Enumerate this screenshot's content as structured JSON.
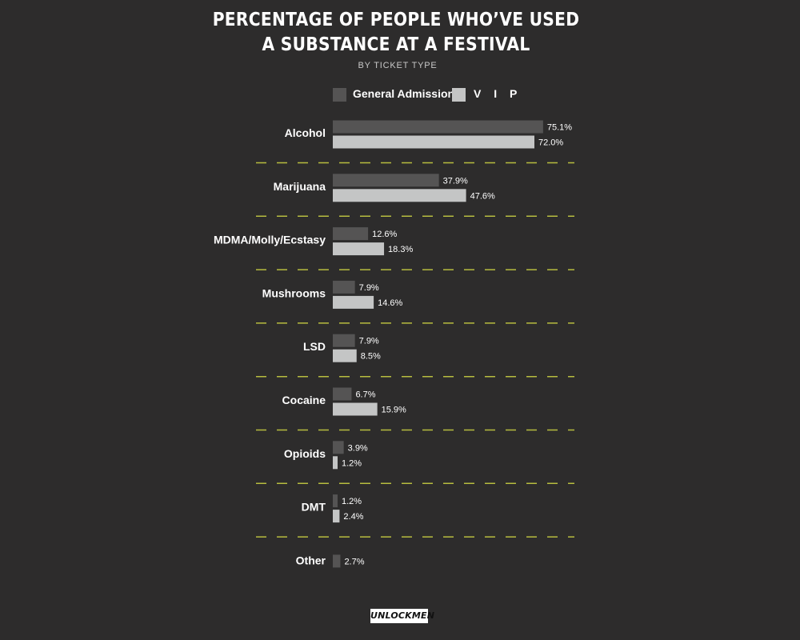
{
  "chart_data": {
    "type": "bar",
    "orientation": "horizontal",
    "title_line1": "PERCENTAGE OF PEOPLE WHO’VE USED",
    "title_line2": "A SUBSTANCE AT A FESTIVAL",
    "subtitle": "BY  TICKET TYPE",
    "categories": [
      "Alcohol",
      "Marijuana",
      "MDMA/Molly/Ecstasy",
      "Mushrooms",
      "LSD",
      "Cocaine",
      "Opioids",
      "DMT",
      "Other"
    ],
    "series": [
      {
        "name": "General Admission",
        "color": "#555454",
        "values": [
          75.1,
          37.9,
          12.6,
          7.9,
          7.9,
          6.7,
          3.9,
          1.2,
          2.7
        ],
        "labels": [
          "75.1%",
          "37.9%",
          "12.6%",
          "7.9%",
          "7.9%",
          "6.7%",
          "3.9%",
          "1.2%",
          "2.7%"
        ]
      },
      {
        "name": "V I P",
        "color": "#c4c5c5",
        "values": [
          72.0,
          47.6,
          18.3,
          14.6,
          8.5,
          15.9,
          1.2,
          2.4,
          null
        ],
        "labels": [
          "72.0%",
          "47.6%",
          "18.3%",
          "14.6%",
          "8.5%",
          "15.9%",
          "1.2%",
          "2.4%",
          null
        ]
      }
    ],
    "separator_color": "#b7bd3f",
    "grid": false,
    "legend_position": "top-center"
  },
  "branding": {
    "logo_text": "UNLOCKMEN"
  }
}
